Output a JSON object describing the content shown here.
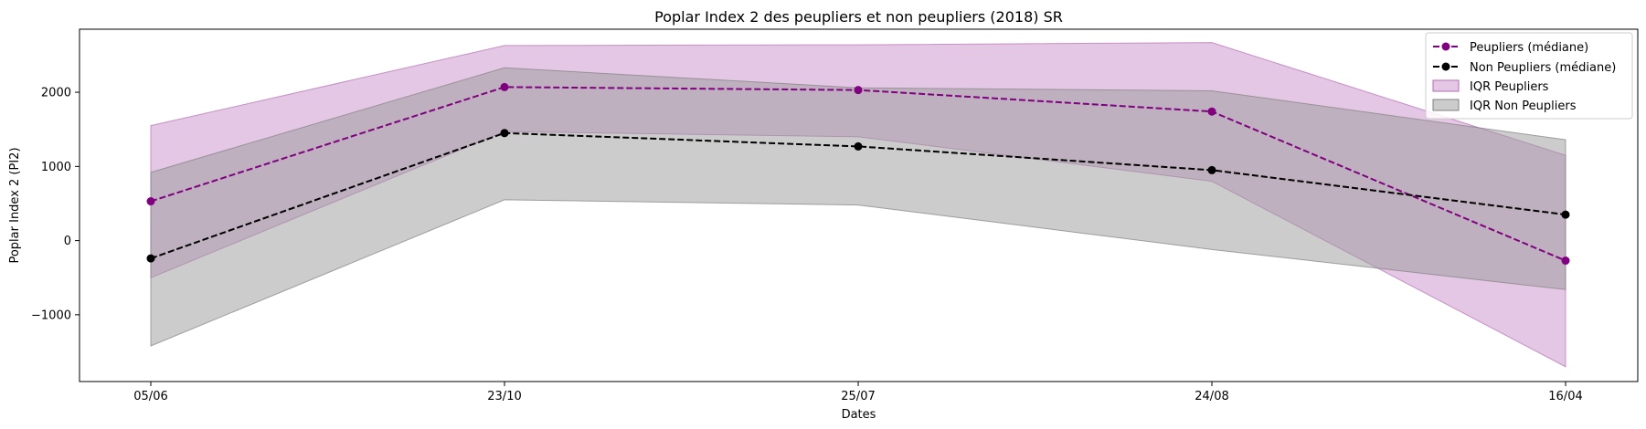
{
  "chart_data": {
    "type": "line",
    "title": "Poplar Index 2 des peupliers et non peupliers (2018) SR",
    "xlabel": "Dates",
    "ylabel": "Poplar Index 2 (PI2)",
    "categories": [
      "05/06",
      "23/10",
      "25/07",
      "24/08",
      "16/04"
    ],
    "ylim": [
      -1900,
      2850
    ],
    "yticks": [
      -1000,
      0,
      1000,
      2000
    ],
    "ytick_labels": [
      "−1000",
      "0",
      "1000",
      "2000"
    ],
    "grid": false,
    "legend_position": "top-right",
    "series": [
      {
        "name": "Peupliers (médiane)",
        "values": [
          530,
          2070,
          2030,
          1740,
          -270
        ],
        "color": "#800080",
        "style": "dashed",
        "marker": "circle"
      },
      {
        "name": "Non Peupliers (médiane)",
        "values": [
          -240,
          1450,
          1270,
          950,
          350
        ],
        "color": "#000000",
        "style": "dashed",
        "marker": "circle"
      }
    ],
    "bands": [
      {
        "name": "IQR Peupliers",
        "lower": [
          -500,
          1470,
          1400,
          800,
          -1700
        ],
        "upper": [
          1550,
          2630,
          2640,
          2670,
          1150
        ],
        "color": "#c98fc9",
        "edge": "#b46db4"
      },
      {
        "name": "IQR Non Peupliers",
        "lower": [
          -1420,
          550,
          480,
          -120,
          -660
        ],
        "upper": [
          920,
          2330,
          2060,
          2020,
          1360
        ],
        "color": "#9a9a9a",
        "edge": "#808080"
      }
    ]
  }
}
